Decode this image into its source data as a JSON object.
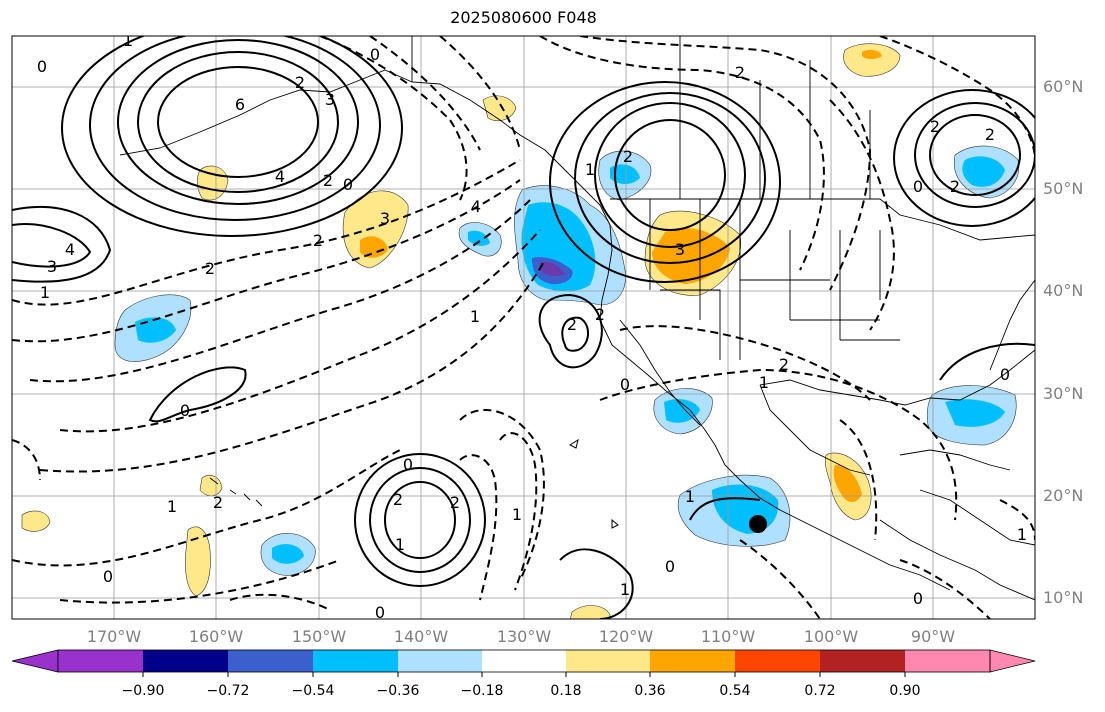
{
  "title": "2025080600 F048",
  "latitude_labels": [
    "60°N",
    "50°N",
    "40°N",
    "30°N",
    "20°N",
    "10°N"
  ],
  "longitude_labels": [
    "170°W",
    "160°W",
    "150°W",
    "140°W",
    "130°W",
    "120°W",
    "110°W",
    "100°W",
    "90°W"
  ],
  "colorbar": {
    "labels": [
      "−0.90",
      "−0.72",
      "−0.54",
      "−0.36",
      "−0.18",
      "0.18",
      "0.36",
      "0.54",
      "0.72",
      "0.90"
    ],
    "colors": [
      "#9932cc",
      "#00008b",
      "#3b5fcd",
      "#00bfff",
      "#afe0ff",
      "#ffffff",
      "#ffe88a",
      "#ffa500",
      "#ff4500",
      "#b22222",
      "#ff88b0"
    ]
  },
  "shading_colors": {
    "blue_light": "#afe0ff",
    "blue_mid": "#00bfff",
    "blue_dark": "#3b5fcd",
    "purple": "#6a3aaa",
    "yellow": "#ffe88a",
    "orange": "#ffa500"
  },
  "contour_labels": [
    "1",
    "0",
    "6",
    "3",
    "2",
    "4",
    "2",
    "0",
    "3",
    "2",
    "4",
    "3",
    "1",
    "2",
    "1",
    "0",
    "2",
    "2",
    "2",
    "4",
    "1",
    "2",
    "3",
    "2",
    "0",
    "0",
    "0",
    "1",
    "2",
    "1",
    "0",
    "2",
    "0",
    "2",
    "2",
    "1",
    "1",
    "1",
    "0",
    "0",
    "2",
    "0",
    "2",
    "1",
    "0",
    "1"
  ],
  "marker": "black-dot"
}
